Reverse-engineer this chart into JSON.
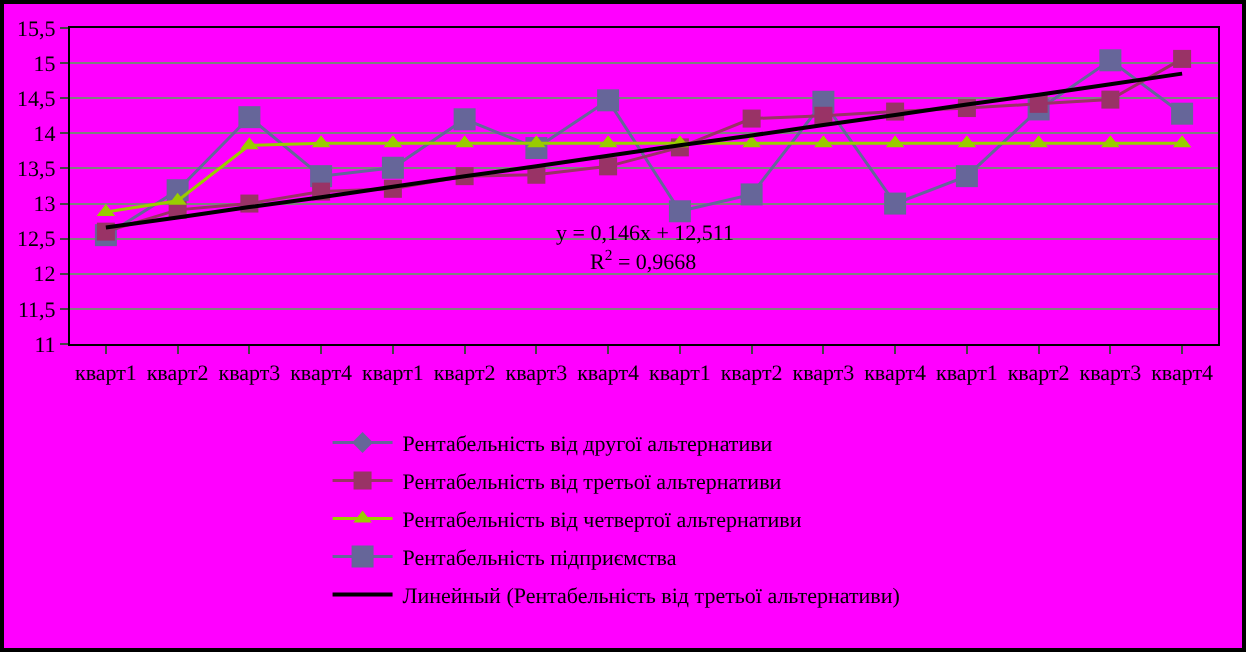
{
  "chart_data": {
    "type": "line",
    "categories": [
      "кварт1",
      "кварт2",
      "кварт3",
      "кварт4",
      "кварт1",
      "кварт2",
      "кварт3",
      "кварт4",
      "кварт1",
      "кварт2",
      "кварт3",
      "кварт4",
      "кварт1",
      "кварт2",
      "кварт3",
      "кварт4"
    ],
    "series": [
      {
        "name": "Рентабельність від другої альтернативи",
        "color": "#666699",
        "marker": "diamond",
        "values": [
          null,
          null,
          null,
          null,
          null,
          null,
          null,
          null,
          null,
          null,
          null,
          null,
          null,
          null,
          null,
          null
        ]
      },
      {
        "name": "Рентабельність від третьої альтернативи",
        "color": "#993366",
        "marker": "square",
        "values": [
          12.6,
          12.91,
          13.0,
          13.17,
          13.21,
          13.39,
          13.41,
          13.53,
          13.8,
          14.21,
          14.25,
          14.31,
          14.36,
          14.42,
          14.48,
          15.06
        ]
      },
      {
        "name": "Рентабельність від четвертої альтернативи",
        "color": "#99cc00",
        "marker": "triangle",
        "values": [
          12.88,
          13.04,
          13.83,
          13.86,
          13.86,
          13.86,
          13.86,
          13.86,
          13.86,
          13.86,
          13.86,
          13.86,
          13.86,
          13.86,
          13.86,
          13.86
        ]
      },
      {
        "name": "Рентабельність підприємства",
        "color": "#666699",
        "marker": "square",
        "values": [
          12.55,
          13.19,
          14.23,
          13.39,
          13.51,
          14.2,
          13.79,
          14.47,
          12.89,
          13.13,
          14.45,
          13.0,
          13.39,
          14.34,
          15.04,
          14.28
        ]
      },
      {
        "name": "Линейный (Рентабельність від третьої альтернативи)",
        "color": "#000000",
        "marker": "none",
        "values": [
          12.66,
          12.8,
          12.95,
          13.09,
          13.24,
          13.39,
          13.53,
          13.68,
          13.83,
          13.97,
          14.12,
          14.26,
          14.41,
          14.55,
          14.7,
          14.85
        ]
      }
    ],
    "ylim": [
      11,
      15.5
    ],
    "yticks": [
      11,
      {
        "value": 11.5,
        "label": "11,5"
      },
      12,
      {
        "value": 12.5,
        "label": "12,5"
      },
      13,
      {
        "value": 13.5,
        "label": "13,5"
      },
      14,
      {
        "value": 14.5,
        "label": "14,5"
      },
      15,
      {
        "value": 15.5,
        "label": "15,5"
      }
    ],
    "grid": "y",
    "legend": "bottom",
    "annotations": [
      "y = 0,146x + 12,511",
      "R$^{2}$ = 0,9668"
    ]
  }
}
